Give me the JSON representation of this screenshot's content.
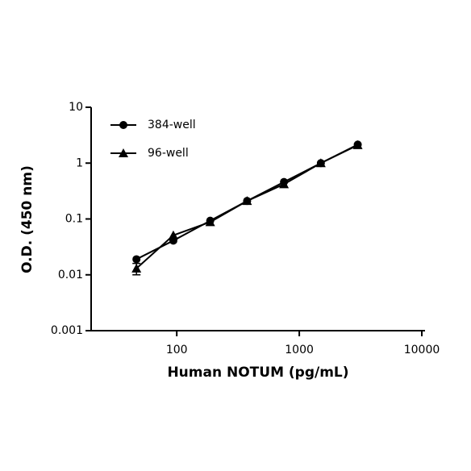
{
  "chart_data": {
    "type": "line",
    "xlabel": "Human  NOTUM (pg/mL)",
    "ylabel": "O.D. (450 nm)",
    "x": [
      46.875,
      93.75,
      187.5,
      375,
      750,
      1500,
      3000
    ],
    "series": [
      {
        "name": "384-well",
        "color": "#000000",
        "marker": "circle",
        "values": [
          0.019,
          0.041,
          0.093,
          0.21,
          0.46,
          1.0,
          2.15
        ]
      },
      {
        "name": "96-well",
        "color": "#000000",
        "marker": "triangle",
        "values": [
          0.013,
          0.051,
          0.088,
          0.21,
          0.42,
          1.0,
          2.1
        ],
        "errors": [
          0.003,
          null,
          null,
          null,
          null,
          null,
          null
        ]
      }
    ],
    "xscale": "log",
    "yscale": "log",
    "xlim": [
      20,
      10000
    ],
    "ylim": [
      0.001,
      10
    ],
    "xticks": [
      100,
      1000,
      10000
    ],
    "yticks": [
      0.001,
      0.01,
      0.1,
      1,
      10
    ],
    "legend": "upper left"
  }
}
